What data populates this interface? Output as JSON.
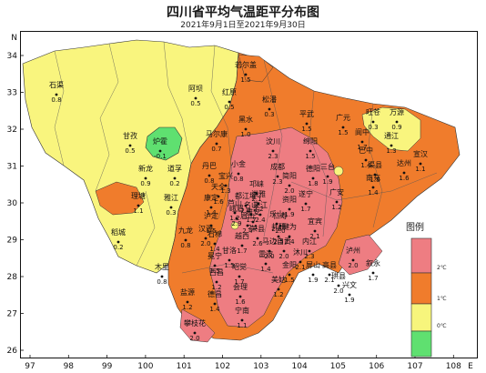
{
  "title": "四川省平均气温距平分布图",
  "subtitle": "2021年9月1日至2021年9月30日",
  "axes": {
    "north_label": "N",
    "east_label": "E",
    "lon_ticks": [
      "97",
      "98",
      "99",
      "100",
      "101",
      "102",
      "103",
      "104",
      "105",
      "106",
      "107",
      "108"
    ],
    "lat_ticks": [
      "34",
      "33",
      "32",
      "31",
      "30",
      "29",
      "28",
      "27",
      "26"
    ]
  },
  "legend": {
    "title": "图例",
    "items": [
      {
        "label": "2℃",
        "color": "#ee7d82"
      },
      {
        "label": "1℃",
        "color": "#f07c2c"
      },
      {
        "label": "0℃",
        "color": "#f7f57c"
      },
      {
        "label": "",
        "color": "#5fe070"
      }
    ]
  },
  "colors": {
    "frame": "#111111",
    "region_yellow": "#f9f57e",
    "region_orange": "#f07c2c",
    "region_pink": "#ee7d82",
    "region_green": "#5fe070"
  },
  "stations": [
    {
      "name": "石渠",
      "value": "0.8"
    },
    {
      "name": "若尔盖",
      "value": "1.5"
    },
    {
      "name": "阿坝",
      "value": "0.5"
    },
    {
      "name": "红原",
      "value": "0.5"
    },
    {
      "name": "松潘",
      "value": "0.3"
    },
    {
      "name": "甘孜",
      "value": "0.5"
    },
    {
      "name": "炉霍",
      "value": "-0.1"
    },
    {
      "name": "马尔康",
      "value": "0.7"
    },
    {
      "name": "黑水",
      "value": "1.0"
    },
    {
      "name": "平武",
      "value": "1.5"
    },
    {
      "name": "广元",
      "value": "1.5"
    },
    {
      "name": "旺苍",
      "value": "0.3"
    },
    {
      "name": "万源",
      "value": "0.9"
    },
    {
      "name": "新龙",
      "value": "0.9"
    },
    {
      "name": "道孚",
      "value": "0.2"
    },
    {
      "name": "丹巴",
      "value": "0.8"
    },
    {
      "name": "小金",
      "value": "0.8"
    },
    {
      "name": "汶川",
      "value": "2.3"
    },
    {
      "name": "绵阳",
      "value": "1.5"
    },
    {
      "name": "巴中",
      "value": "1.4"
    },
    {
      "name": "理塘",
      "value": "1.1"
    },
    {
      "name": "雅江",
      "value": "0.3"
    },
    {
      "name": "康定",
      "value": "1.4"
    },
    {
      "name": "都江堰",
      "value": "2.4"
    },
    {
      "name": "德阳",
      "value": "1.8"
    },
    {
      "name": "南充",
      "value": "1.4"
    },
    {
      "name": "达州",
      "value": "1.6"
    },
    {
      "name": "稻城",
      "value": "0.2"
    },
    {
      "name": "九龙",
      "value": "0.8"
    },
    {
      "name": "雅安",
      "value": "2.1"
    },
    {
      "name": "乐山",
      "value": "2.6"
    },
    {
      "name": "遂宁",
      "value": "1.7"
    },
    {
      "name": "广安",
      "value": "1.2"
    },
    {
      "name": "石棉",
      "value": "1.4"
    },
    {
      "name": "越西",
      "value": "1.7"
    },
    {
      "name": "宜宾",
      "value": "2.1"
    },
    {
      "name": "自贡",
      "value": "2.0"
    },
    {
      "name": "内江",
      "value": "2.3"
    },
    {
      "name": "泸州",
      "value": "2.0"
    },
    {
      "name": "木里",
      "value": "0.8"
    },
    {
      "name": "冕宁",
      "value": "1.5"
    },
    {
      "name": "昭觉",
      "value": "1.7"
    },
    {
      "name": "西昌",
      "value": "1.2"
    },
    {
      "name": "叙永",
      "value": "1.7"
    },
    {
      "name": "盐源",
      "value": "1.2"
    },
    {
      "name": "德昌",
      "value": "1.4"
    },
    {
      "name": "会理",
      "value": "1.6"
    },
    {
      "name": "攀枝花",
      "value": "2.0"
    },
    {
      "name": "成都",
      "value": "2.3"
    },
    {
      "name": "邛崃",
      "value": "2.1"
    },
    {
      "name": "三台",
      "value": "1.9"
    },
    {
      "name": "阆中",
      "value": "1.7"
    },
    {
      "name": "通江",
      "value": "1.3"
    },
    {
      "name": "宣汉",
      "value": "1.1"
    },
    {
      "name": "渠县",
      "value": "1.8"
    },
    {
      "name": "简阳",
      "value": "2.0"
    },
    {
      "name": "资阳",
      "value": "1.9"
    },
    {
      "name": "仁寿",
      "value": "2.0"
    },
    {
      "name": "眉山",
      "value": "2.4"
    },
    {
      "name": "荣县",
      "value": "2.6"
    },
    {
      "name": "峨眉",
      "value": "2.9"
    },
    {
      "name": "马边",
      "value": "2.0"
    },
    {
      "name": "雷波",
      "value": "1.4"
    },
    {
      "name": "屏山",
      "value": "1.9"
    },
    {
      "name": "金阳",
      "value": "1.5"
    },
    {
      "name": "宁南",
      "value": "1.1"
    },
    {
      "name": "美姑",
      "value": "1.2"
    },
    {
      "name": "甘洛",
      "value": "1.5"
    },
    {
      "name": "汉源",
      "value": "2.0"
    },
    {
      "name": "泸定",
      "value": "1.5"
    },
    {
      "name": "天全",
      "value": "1.6"
    },
    {
      "name": "宝兴",
      "value": "1.3"
    },
    {
      "name": "芦山",
      "value": "1.2"
    },
    {
      "name": "名山",
      "value": "1.7"
    },
    {
      "name": "洪雅",
      "value": "2.2"
    },
    {
      "name": "夹江",
      "value": "2.4"
    },
    {
      "name": "井研",
      "value": "2.5"
    },
    {
      "name": "犍为",
      "value": "2.4"
    },
    {
      "name": "沐川",
      "value": "2.1"
    },
    {
      "name": "高县",
      "value": "2.1"
    },
    {
      "name": "珙县",
      "value": "2.0"
    },
    {
      "name": "兴文",
      "value": "1.9"
    }
  ]
}
